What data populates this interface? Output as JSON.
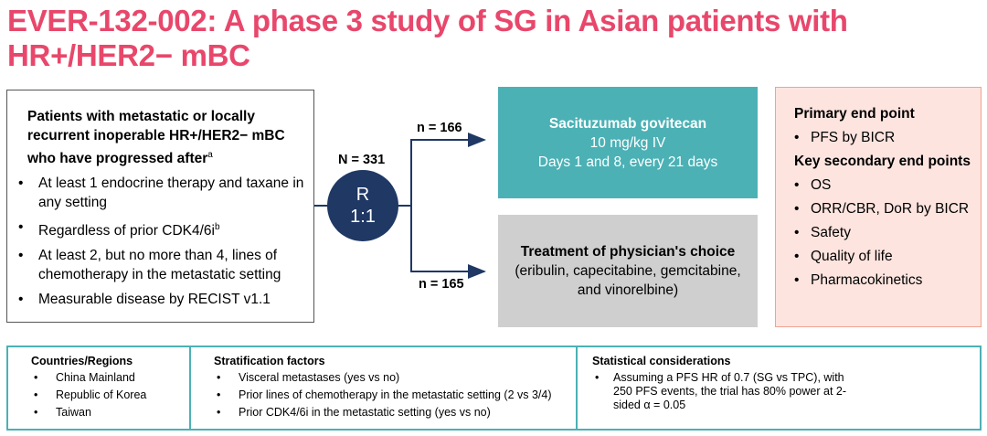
{
  "title": "EVER-132-002: A phase 3 study of SG in Asian patients with HR+/HER2− mBC",
  "eligibility": {
    "heading": "Patients with metastatic or locally recurrent inoperable HR+/HER2− mBC who have progressed after",
    "heading_sup": "a",
    "items": [
      {
        "text": "At least 1 endocrine therapy and taxane in any setting",
        "sup": ""
      },
      {
        "text": "Regardless of prior CDK4/6i",
        "sup": "b"
      },
      {
        "text": "At least 2, but no more than 4, lines of chemotherapy in the metastatic setting",
        "sup": ""
      },
      {
        "text": "Measurable disease by RECIST v1.1",
        "sup": ""
      }
    ]
  },
  "randomization": {
    "total": "N = 331",
    "line1": "R",
    "line2": "1:1",
    "arm1_n": "n = 166",
    "arm2_n": "n = 165"
  },
  "arm1": {
    "name": "Sacituzumab govitecan",
    "dose": "10 mg/kg IV",
    "schedule": "Days 1 and 8, every 21 days"
  },
  "arm2": {
    "name": "Treatment of physician's choice",
    "line2": "(eribulin, capecitabine, gemcitabine,",
    "line3": "and vinorelbine)"
  },
  "endpoints": {
    "primary_heading": "Primary end point",
    "primary": [
      "PFS by BICR"
    ],
    "secondary_heading": "Key secondary end points",
    "secondary": [
      "OS",
      "ORR/CBR, DoR by BICR",
      "Safety",
      "Quality of life",
      "Pharmacokinetics"
    ]
  },
  "bottom": {
    "regions": {
      "heading": "Countries/Regions",
      "items": [
        "China Mainland",
        "Republic of Korea",
        "Taiwan"
      ]
    },
    "stratification": {
      "heading": "Stratification factors",
      "items": [
        "Visceral metastases (yes vs no)",
        "Prior lines of chemotherapy in the metastatic setting (2 vs 3/4)",
        "Prior CDK4/6i in the metastatic setting (yes vs no)"
      ]
    },
    "statistics": {
      "heading": "Statistical considerations",
      "items": [
        "Assuming a PFS HR of 0.7 (SG vs TPC), with 250 PFS events, the trial has 80% power at 2-sided α = 0.05"
      ]
    }
  },
  "colors": {
    "title": "#e8476b",
    "teal": "#4bb1b5",
    "navy": "#1f3864",
    "gray": "#cfcfcf",
    "pink": "#fde4df"
  }
}
